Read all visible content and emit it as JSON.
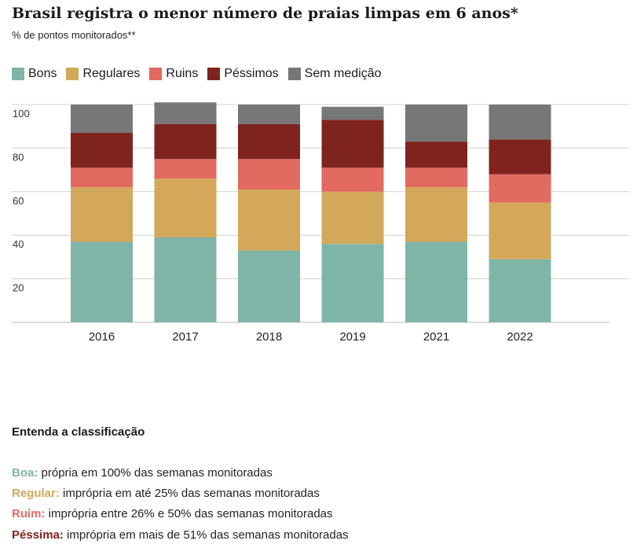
{
  "chart_data": {
    "type": "bar",
    "stacked": true,
    "title": "Brasil registra o menor número de praias limpas em 6 anos*",
    "subtitle": "% de pontos monitorados**",
    "categories": [
      "2016",
      "2017",
      "2018",
      "2019",
      "2021",
      "2022"
    ],
    "series": [
      {
        "name": "Bons",
        "color": "#7fb5a7",
        "values": [
          37,
          39,
          33,
          36,
          37,
          29
        ]
      },
      {
        "name": "Regulares",
        "color": "#d3a85b",
        "values": [
          25,
          27,
          28,
          24,
          25,
          26
        ]
      },
      {
        "name": "Ruins",
        "color": "#e26a61",
        "values": [
          9,
          9,
          14,
          11,
          9,
          13
        ]
      },
      {
        "name": "Péssimos",
        "color": "#7f231e",
        "values": [
          16,
          16,
          16,
          22,
          12,
          16
        ]
      },
      {
        "name": "Sem medição",
        "color": "#777777",
        "values": [
          13,
          10,
          9,
          6,
          17,
          16
        ]
      }
    ],
    "y_ticks": [
      20,
      40,
      60,
      80,
      100
    ],
    "ylim": [
      0,
      100
    ],
    "legend_position": "top-left",
    "grid": true
  },
  "explain": {
    "title": "Entenda a classificação",
    "items": [
      {
        "key": "Boa:",
        "text": " própria em 100% das semanas monitoradas",
        "color": "#7fb5a7"
      },
      {
        "key": "Regular:",
        "text": " imprópria em até 25% das semanas monitoradas",
        "color": "#d3a85b"
      },
      {
        "key": "Ruim:",
        "text": " imprópria entre 26% e 50% das semanas monitoradas",
        "color": "#e26a61"
      },
      {
        "key": "Péssima:",
        "text": " imprópria em mais de 51% das semanas monitoradas",
        "color": "#7f231e"
      }
    ]
  }
}
